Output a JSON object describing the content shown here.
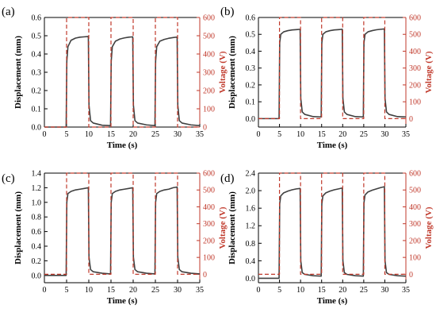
{
  "colors": {
    "displacement": "#404040",
    "voltage": "#c0392b",
    "voltage_axis": "#c0392b",
    "axis": "#000000"
  },
  "chart_data": [
    {
      "type": "line",
      "panel_label": "(a)",
      "xlabel": "Time (s)",
      "ylabel": "Displacement (mm)",
      "y2label": "Voltage (V)",
      "xlim": [
        0,
        35
      ],
      "ylim": [
        0,
        0.6
      ],
      "y2lim": [
        0,
        600
      ],
      "xticks": [
        "0",
        "5",
        "10",
        "15",
        "20",
        "25",
        "30",
        "35"
      ],
      "yticks": [
        "0.0",
        "0.1",
        "0.2",
        "0.3",
        "0.4",
        "0.5",
        "0.6"
      ],
      "y2ticks": [
        "0",
        "100",
        "200",
        "300",
        "400",
        "500",
        "600"
      ],
      "grid": false,
      "series": [
        {
          "axis": "left",
          "style": "solid",
          "x": [
            0,
            4.9,
            5.05,
            5.3,
            6,
            7,
            8,
            9,
            9.9,
            10.05,
            10.4,
            11,
            13,
            14.9,
            15.05,
            15.3,
            16,
            17,
            18,
            19,
            19.9,
            20.05,
            20.4,
            21,
            23,
            24.9,
            25.05,
            25.3,
            26,
            27,
            28,
            29,
            29.9,
            30.05,
            30.4,
            31,
            33,
            35
          ],
          "values": [
            0,
            0,
            0.36,
            0.44,
            0.475,
            0.487,
            0.492,
            0.494,
            0.496,
            0.12,
            0.035,
            0.022,
            0.01,
            0.008,
            0.36,
            0.44,
            0.47,
            0.482,
            0.488,
            0.492,
            0.494,
            0.12,
            0.035,
            0.022,
            0.012,
            0.008,
            0.36,
            0.44,
            0.47,
            0.48,
            0.486,
            0.49,
            0.493,
            0.12,
            0.035,
            0.022,
            0.012,
            0.008
          ]
        },
        {
          "axis": "right",
          "style": "dashed",
          "x": [
            0,
            5,
            5,
            10,
            10,
            15,
            15,
            20,
            20,
            25,
            25,
            30,
            30,
            35
          ],
          "values": [
            0,
            0,
            600,
            600,
            0,
            0,
            600,
            600,
            0,
            0,
            600,
            600,
            0,
            0
          ]
        }
      ]
    },
    {
      "type": "line",
      "panel_label": "(b)",
      "xlabel": "Time (s)",
      "ylabel": "Displacement (mm)",
      "y2label": "Voltage (V)",
      "xlim": [
        0,
        35
      ],
      "ylim": [
        -0.05,
        0.6
      ],
      "y2lim": [
        -50,
        600
      ],
      "xticks": [
        "0",
        "5",
        "10",
        "15",
        "20",
        "25",
        "30",
        "35"
      ],
      "yticks": [
        "0.0",
        "0.1",
        "0.2",
        "0.3",
        "0.4",
        "0.5",
        "0.6"
      ],
      "y2ticks": [
        "0",
        "100",
        "200",
        "300",
        "400",
        "500",
        "600"
      ],
      "grid": false,
      "series": [
        {
          "axis": "left",
          "style": "solid",
          "x": [
            0,
            4.9,
            5.05,
            5.3,
            6,
            7,
            8,
            9,
            9.9,
            10.05,
            10.4,
            11,
            13,
            14.9,
            15.05,
            15.3,
            16,
            17,
            18,
            19,
            19.9,
            20.05,
            20.4,
            21,
            23,
            24.9,
            25.05,
            25.3,
            26,
            27,
            28,
            29,
            29.9,
            30.05,
            30.4,
            31,
            33,
            35
          ],
          "values": [
            0,
            0,
            0.45,
            0.5,
            0.515,
            0.522,
            0.526,
            0.528,
            0.53,
            0.12,
            0.04,
            0.025,
            0.012,
            0.01,
            0.45,
            0.5,
            0.515,
            0.522,
            0.526,
            0.528,
            0.53,
            0.12,
            0.04,
            0.025,
            0.012,
            0.01,
            0.45,
            0.5,
            0.515,
            0.522,
            0.527,
            0.53,
            0.532,
            0.12,
            0.04,
            0.025,
            0.012,
            0.01
          ]
        },
        {
          "axis": "right",
          "style": "dashed",
          "x": [
            0,
            5,
            5,
            10,
            10,
            15,
            15,
            20,
            20,
            25,
            25,
            30,
            30,
            35
          ],
          "values": [
            0,
            0,
            600,
            600,
            0,
            0,
            600,
            600,
            0,
            0,
            600,
            600,
            0,
            0
          ]
        }
      ]
    },
    {
      "type": "line",
      "panel_label": "(c)",
      "xlabel": "Time (s)",
      "ylabel": "Displacement (mm)",
      "y2label": "Voltage (V)",
      "xlim": [
        0,
        35
      ],
      "ylim": [
        -0.1,
        1.4
      ],
      "y2lim": [
        -50,
        600
      ],
      "xticks": [
        "0",
        "5",
        "10",
        "15",
        "20",
        "25",
        "30",
        "35"
      ],
      "yticks": [
        "0.0",
        "0.2",
        "0.4",
        "0.6",
        "0.8",
        "1.0",
        "1.2",
        "1.4"
      ],
      "y2ticks": [
        "0",
        "100",
        "200",
        "300",
        "400",
        "500",
        "600"
      ],
      "grid": false,
      "series": [
        {
          "axis": "left",
          "style": "solid",
          "x": [
            0,
            4.9,
            5.05,
            5.3,
            6,
            7,
            8,
            9,
            9.9,
            10.05,
            10.4,
            11,
            13,
            14.9,
            15.05,
            15.3,
            16,
            17,
            18,
            19,
            19.9,
            20.05,
            20.4,
            21,
            23,
            24.9,
            25.05,
            25.3,
            26,
            27,
            28,
            29,
            29.9,
            30.05,
            30.4,
            31,
            33,
            35
          ],
          "values": [
            0,
            0,
            1.0,
            1.12,
            1.15,
            1.17,
            1.18,
            1.19,
            1.2,
            0.25,
            0.08,
            0.05,
            0.03,
            0.02,
            1.0,
            1.12,
            1.15,
            1.17,
            1.18,
            1.19,
            1.2,
            0.25,
            0.08,
            0.05,
            0.03,
            0.02,
            1.0,
            1.12,
            1.15,
            1.17,
            1.18,
            1.2,
            1.21,
            0.25,
            0.08,
            0.05,
            0.03,
            0.02
          ]
        },
        {
          "axis": "right",
          "style": "dashed",
          "x": [
            0,
            5,
            5,
            10,
            10,
            15,
            15,
            20,
            20,
            25,
            25,
            30,
            30,
            35
          ],
          "values": [
            0,
            0,
            600,
            600,
            0,
            0,
            600,
            600,
            0,
            0,
            600,
            600,
            0,
            0
          ]
        }
      ]
    },
    {
      "type": "line",
      "panel_label": "(d)",
      "xlabel": "Time (s)",
      "ylabel": "Displacement (mm)",
      "y2label": "Voltage (V)",
      "xlim": [
        0,
        35
      ],
      "ylim": [
        -0.1,
        2.4
      ],
      "y2lim": [
        -50,
        600
      ],
      "xticks": [
        "0",
        "5",
        "10",
        "15",
        "20",
        "25",
        "30",
        "35"
      ],
      "yticks": [
        "0.0",
        "0.4",
        "0.8",
        "1.2",
        "1.6",
        "2.0",
        "2.4"
      ],
      "y2ticks": [
        "0",
        "100",
        "200",
        "300",
        "400",
        "500",
        "600"
      ],
      "grid": false,
      "series": [
        {
          "axis": "left",
          "style": "solid",
          "x": [
            0,
            4.9,
            5.05,
            5.3,
            6,
            7,
            8,
            9,
            9.9,
            10.05,
            10.4,
            11,
            13,
            14.9,
            15.05,
            15.3,
            16,
            17,
            18,
            19,
            19.9,
            20.05,
            20.4,
            21,
            23,
            24.9,
            25.05,
            25.3,
            26,
            27,
            28,
            29,
            29.9,
            30.05,
            30.4,
            31,
            33,
            35
          ],
          "values": [
            0,
            0,
            1.7,
            1.88,
            1.95,
            1.99,
            2.02,
            2.04,
            2.05,
            0.4,
            0.13,
            0.09,
            0.06,
            0.05,
            1.7,
            1.88,
            1.95,
            1.99,
            2.02,
            2.04,
            2.06,
            0.4,
            0.13,
            0.09,
            0.06,
            0.05,
            1.72,
            1.9,
            1.97,
            2.01,
            2.04,
            2.07,
            2.09,
            0.4,
            0.13,
            0.09,
            0.06,
            0.05
          ]
        },
        {
          "axis": "right",
          "style": "dashed",
          "x": [
            0,
            5,
            5,
            10,
            10,
            15,
            15,
            20,
            20,
            25,
            25,
            30,
            30,
            35
          ],
          "values": [
            0,
            0,
            600,
            600,
            0,
            0,
            600,
            600,
            0,
            0,
            600,
            600,
            0,
            0
          ]
        }
      ]
    }
  ]
}
